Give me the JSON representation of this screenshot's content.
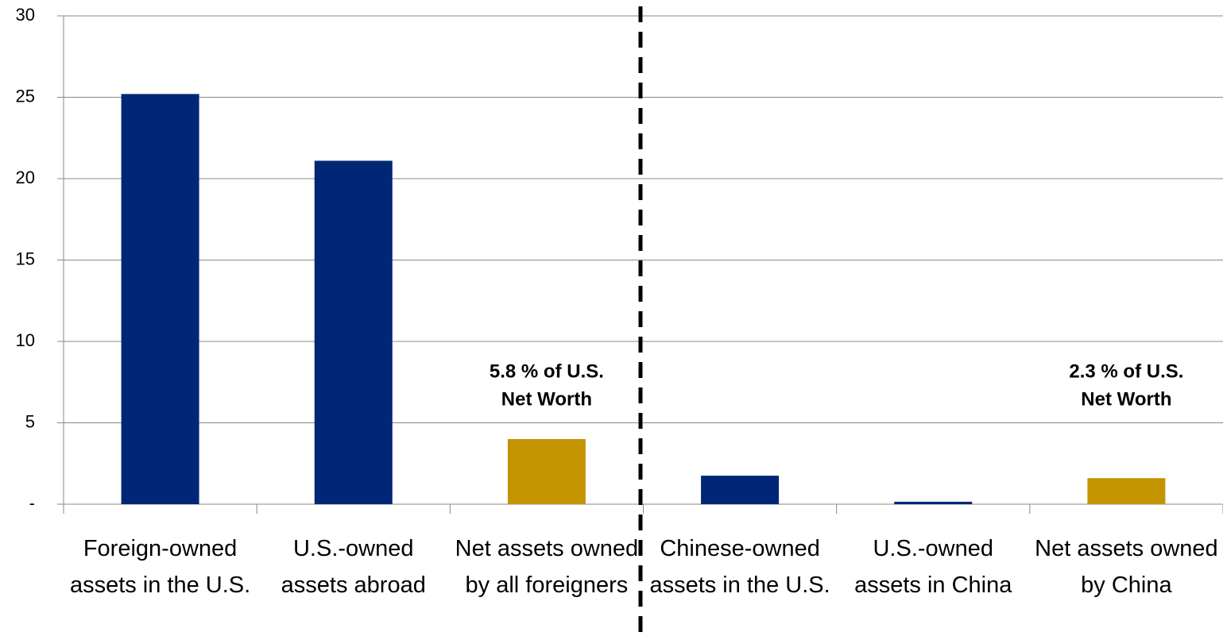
{
  "chart_data": {
    "type": "bar",
    "categories": [
      "Foreign-owned assets in the U.S.",
      "U.S.-owned assets abroad",
      "Net assets owned by all foreigners",
      "Chinese-owned assets in the U.S.",
      "U.S.-owned assets in China",
      "Net assets owned by China"
    ],
    "values": [
      25.2,
      21.1,
      4.0,
      1.75,
      0.15,
      1.6
    ],
    "colors": [
      "#002776",
      "#002776",
      "#c49300",
      "#002776",
      "#002776",
      "#c49300"
    ],
    "ylim": [
      0,
      30
    ],
    "yticks": [
      {
        "value": 0,
        "label": "-"
      },
      5,
      10,
      15,
      20,
      25,
      30
    ],
    "grid": true,
    "annotations": [
      [
        "5.8 % of U.S.",
        "Net Worth"
      ],
      [
        "2.3 % of U.S.",
        "Net Worth"
      ]
    ]
  }
}
